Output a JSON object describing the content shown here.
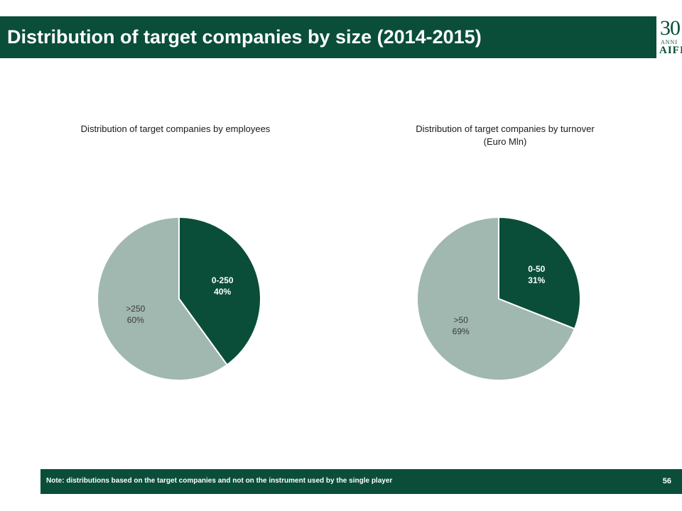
{
  "header": {
    "title": "Distribution of target companies by size (2014-2015)",
    "logo": {
      "number": "30",
      "subtitle": "ANNI",
      "name": "AIFI"
    }
  },
  "colors": {
    "dark_green": "#0a4e3a",
    "light_green": "#a1b8b1",
    "white": "#ffffff"
  },
  "chart_data": [
    {
      "type": "pie",
      "title": "Distribution of target companies by employees",
      "slices": [
        {
          "label": "0-250",
          "value": 40,
          "value_label": "40%",
          "color": "#0a4e3a",
          "text_color": "#ffffff"
        },
        {
          "label": ">250",
          "value": 60,
          "value_label": "60%",
          "color": "#a1b8b1",
          "text_color": "#3a3a3a"
        }
      ]
    },
    {
      "type": "pie",
      "title": "Distribution of target companies by turnover",
      "title_line2": "(Euro Mln)",
      "slices": [
        {
          "label": "0-50",
          "value": 31,
          "value_label": "31%",
          "color": "#0a4e3a",
          "text_color": "#ffffff"
        },
        {
          "label": ">50",
          "value": 69,
          "value_label": "69%",
          "color": "#a1b8b1",
          "text_color": "#3a3a3a"
        }
      ]
    }
  ],
  "footer": {
    "note": "Note: distributions based on the target companies and not on the instrument used by the single player",
    "page_number": "56"
  }
}
